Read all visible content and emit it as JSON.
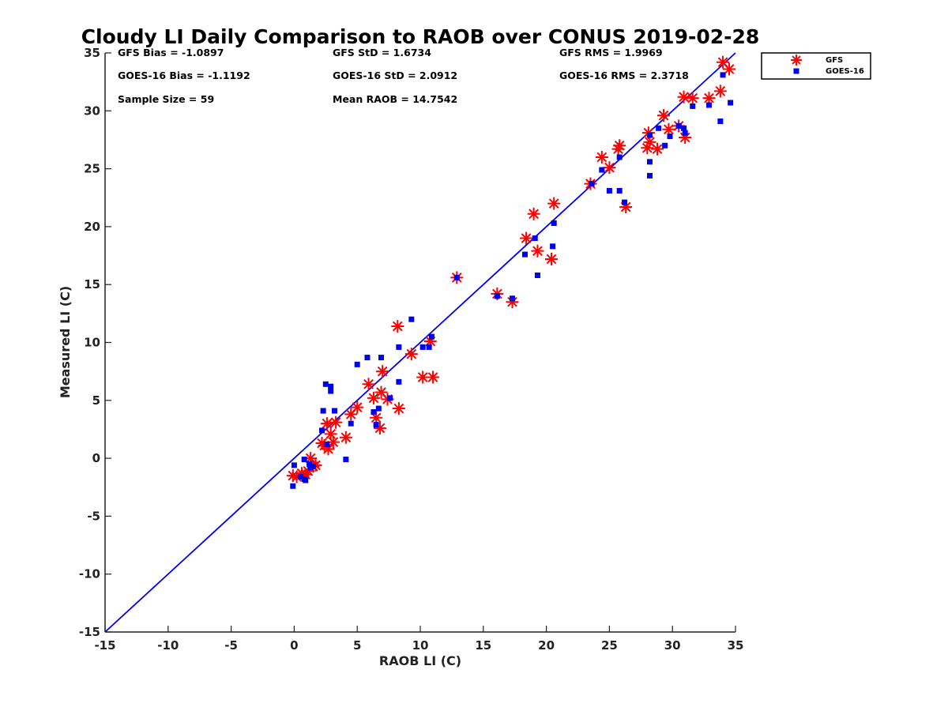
{
  "chart_data": {
    "type": "scatter",
    "title": "Cloudy LI Daily Comparison to RAOB over CONUS 2019-02-28",
    "xlabel": "RAOB LI (C)",
    "ylabel": "Measured LI (C)",
    "xlim": [
      -15,
      35
    ],
    "ylim": [
      -15,
      35
    ],
    "xticks": [
      "-15",
      "-10",
      "-5",
      "0",
      "5",
      "10",
      "15",
      "20",
      "25",
      "30",
      "35"
    ],
    "yticks": [
      "-15",
      "-10",
      "-5",
      "0",
      "5",
      "10",
      "15",
      "20",
      "25",
      "30",
      "35"
    ],
    "grid": false,
    "legend_position": "outside top-right",
    "reference_line": {
      "type": "one-to-one",
      "color": "#0000ee"
    },
    "stats": [
      [
        "GFS Bias = -1.0897",
        "GFS StD = 1.6734",
        "GFS RMS = 1.9969"
      ],
      [
        "GOES-16 Bias = -1.1192",
        "GOES-16 StD = 2.0912",
        "GOES-16 RMS = 2.3718"
      ],
      [
        "Sample Size = 59",
        "Mean RAOB = 14.7542",
        ""
      ]
    ],
    "series": [
      {
        "name": "GFS",
        "marker": "asterisk",
        "color": "#ff0000",
        "points": [
          [
            -0.1,
            -1.5
          ],
          [
            0.2,
            -1.6
          ],
          [
            0.6,
            -1.3
          ],
          [
            0.9,
            -1.4
          ],
          [
            1.1,
            -1.1
          ],
          [
            1.3,
            0.0
          ],
          [
            1.5,
            -0.7
          ],
          [
            1.7,
            -0.6
          ],
          [
            2.2,
            1.3
          ],
          [
            2.4,
            1.1
          ],
          [
            2.6,
            3.0
          ],
          [
            2.7,
            0.8
          ],
          [
            2.9,
            2.1
          ],
          [
            3.1,
            1.4
          ],
          [
            3.3,
            3.1
          ],
          [
            4.1,
            1.8
          ],
          [
            4.5,
            3.8
          ],
          [
            5.0,
            4.4
          ],
          [
            5.9,
            6.4
          ],
          [
            6.3,
            5.2
          ],
          [
            6.5,
            3.5
          ],
          [
            6.8,
            2.6
          ],
          [
            6.9,
            5.7
          ],
          [
            7.0,
            7.5
          ],
          [
            7.4,
            5.1
          ],
          [
            8.2,
            11.4
          ],
          [
            8.3,
            4.3
          ],
          [
            9.3,
            9.0
          ],
          [
            10.2,
            7.0
          ],
          [
            10.8,
            10.1
          ],
          [
            11.0,
            7.0
          ],
          [
            12.9,
            15.6
          ],
          [
            16.1,
            14.2
          ],
          [
            17.3,
            13.5
          ],
          [
            18.4,
            19.0
          ],
          [
            19.0,
            21.1
          ],
          [
            19.3,
            17.9
          ],
          [
            20.4,
            17.2
          ],
          [
            20.6,
            22.0
          ],
          [
            23.5,
            23.7
          ],
          [
            24.4,
            26.0
          ],
          [
            25.0,
            25.1
          ],
          [
            25.7,
            26.7
          ],
          [
            25.8,
            27.0
          ],
          [
            26.3,
            21.7
          ],
          [
            28.0,
            26.8
          ],
          [
            28.1,
            28.1
          ],
          [
            28.2,
            27.3
          ],
          [
            28.8,
            26.7
          ],
          [
            29.3,
            29.6
          ],
          [
            29.7,
            28.4
          ],
          [
            30.5,
            28.7
          ],
          [
            30.9,
            31.2
          ],
          [
            31.0,
            27.7
          ],
          [
            31.6,
            31.1
          ],
          [
            32.9,
            31.1
          ],
          [
            33.8,
            31.7
          ],
          [
            34.0,
            34.2
          ],
          [
            34.5,
            33.6
          ]
        ]
      },
      {
        "name": "GOES-16",
        "marker": "square",
        "color": "#0000ee",
        "points": [
          [
            -0.1,
            -2.4
          ],
          [
            0.0,
            -0.6
          ],
          [
            0.5,
            -1.6
          ],
          [
            0.8,
            -1.8
          ],
          [
            0.8,
            -0.1
          ],
          [
            0.9,
            -1.9
          ],
          [
            1.2,
            -0.5
          ],
          [
            1.3,
            -0.8
          ],
          [
            1.5,
            -0.7
          ],
          [
            2.2,
            2.4
          ],
          [
            2.3,
            4.1
          ],
          [
            2.5,
            6.4
          ],
          [
            2.6,
            1.2
          ],
          [
            2.9,
            6.2
          ],
          [
            2.9,
            5.8
          ],
          [
            3.2,
            4.1
          ],
          [
            4.1,
            -0.1
          ],
          [
            4.5,
            3.0
          ],
          [
            5.0,
            8.1
          ],
          [
            5.8,
            8.7
          ],
          [
            6.3,
            4.0
          ],
          [
            6.5,
            2.9
          ],
          [
            6.7,
            4.3
          ],
          [
            6.9,
            8.7
          ],
          [
            7.6,
            5.2
          ],
          [
            8.3,
            6.6
          ],
          [
            8.3,
            9.6
          ],
          [
            9.3,
            12.0
          ],
          [
            10.2,
            9.6
          ],
          [
            10.7,
            9.6
          ],
          [
            10.9,
            10.5
          ],
          [
            12.9,
            15.6
          ],
          [
            16.1,
            14.0
          ],
          [
            17.3,
            13.8
          ],
          [
            18.3,
            17.6
          ],
          [
            19.1,
            19.0
          ],
          [
            19.3,
            15.8
          ],
          [
            20.5,
            18.3
          ],
          [
            20.6,
            20.3
          ],
          [
            23.6,
            23.7
          ],
          [
            24.4,
            24.9
          ],
          [
            25.0,
            23.1
          ],
          [
            25.8,
            23.1
          ],
          [
            25.8,
            26.0
          ],
          [
            26.2,
            22.1
          ],
          [
            28.2,
            24.4
          ],
          [
            28.2,
            25.6
          ],
          [
            28.2,
            27.9
          ],
          [
            28.9,
            28.5
          ],
          [
            29.4,
            27.0
          ],
          [
            29.8,
            27.8
          ],
          [
            30.5,
            28.7
          ],
          [
            30.9,
            28.5
          ],
          [
            31.0,
            28.1
          ],
          [
            31.6,
            30.4
          ],
          [
            32.9,
            30.5
          ],
          [
            33.8,
            29.1
          ],
          [
            34.0,
            33.1
          ],
          [
            34.6,
            30.7
          ]
        ]
      }
    ]
  }
}
